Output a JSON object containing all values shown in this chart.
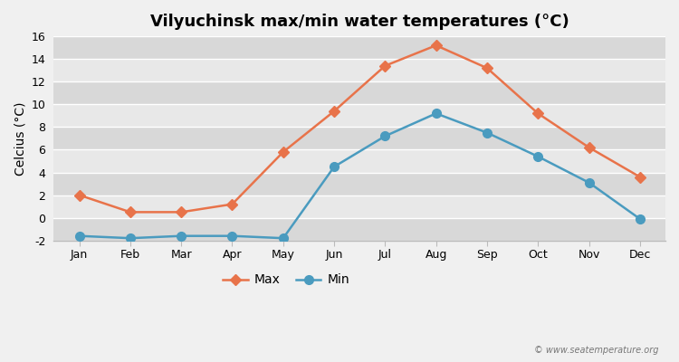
{
  "title": "Vilyuchinsk max/min water temperatures (°C)",
  "ylabel": "Celcius (°C)",
  "months": [
    "Jan",
    "Feb",
    "Mar",
    "Apr",
    "May",
    "Jun",
    "Jul",
    "Aug",
    "Sep",
    "Oct",
    "Nov",
    "Dec"
  ],
  "max_values": [
    2.0,
    0.5,
    0.5,
    1.2,
    5.8,
    9.4,
    13.4,
    15.2,
    13.2,
    9.2,
    6.2,
    3.6
  ],
  "min_values": [
    -1.6,
    -1.8,
    -1.6,
    -1.6,
    -1.8,
    4.5,
    7.2,
    9.2,
    7.5,
    5.4,
    3.1,
    -0.1
  ],
  "max_color": "#e8734a",
  "min_color": "#4a9bbf",
  "max_marker": "D",
  "min_marker": "o",
  "max_marker_size": 6,
  "min_marker_size": 7,
  "line_width": 1.8,
  "ylim": [
    -2,
    16
  ],
  "yticks": [
    -2,
    0,
    2,
    4,
    6,
    8,
    10,
    12,
    14,
    16
  ],
  "background_color": "#f0f0f0",
  "band_color_light": "#e8e8e8",
  "band_color_dark": "#d8d8d8",
  "legend_labels": [
    "Max",
    "Min"
  ],
  "watermark": "© www.seatemperature.org",
  "title_fontsize": 13,
  "axis_label_fontsize": 10,
  "tick_fontsize": 9
}
